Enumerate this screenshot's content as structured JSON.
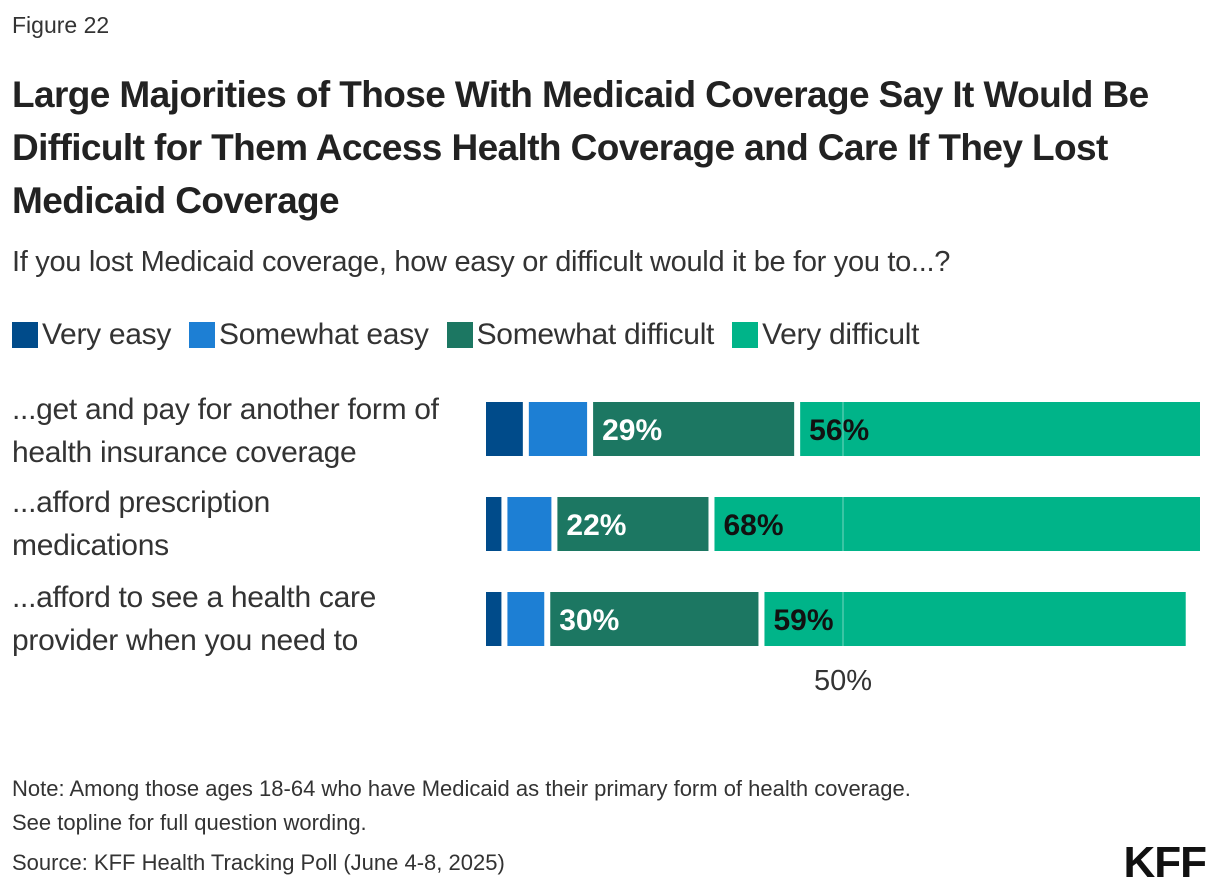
{
  "figure_label": "Figure 22",
  "chart_data": {
    "type": "bar",
    "orientation": "horizontal",
    "stacked": true,
    "title": "Large Majorities of Those With Medicaid Coverage Say It Would Be Difficult for Them Access Health Coverage and Care If They Lost Medicaid Coverage",
    "subtitle": "If you lost Medicaid coverage, how easy or difficult would it be for you to...?",
    "categories": [
      "...get and pay for another form of health insurance coverage",
      "...afford prescription medications",
      "...afford to see a health care provider when you need to"
    ],
    "series": [
      {
        "name": "Very easy",
        "color": "#004b8a",
        "values": [
          6,
          3,
          3
        ],
        "labeled": false
      },
      {
        "name": "Somewhat easy",
        "color": "#1d7fd4",
        "values": [
          9,
          7,
          6
        ],
        "labeled": false
      },
      {
        "name": "Somewhat difficult",
        "color": "#1c7762",
        "values": [
          29,
          22,
          30
        ],
        "labeled": true,
        "label_color": "#ffffff"
      },
      {
        "name": "Very difficult",
        "color": "#00b489",
        "values": [
          56,
          68,
          59
        ],
        "labeled": true,
        "label_color": "#111111"
      }
    ],
    "data_labels": [
      [
        "29%",
        "56%"
      ],
      [
        "22%",
        "68%"
      ],
      [
        "30%",
        "59%"
      ]
    ],
    "reference_line": {
      "value": 50,
      "label": "50%"
    },
    "xlim": [
      0,
      100
    ],
    "legend": "top"
  },
  "notes": {
    "note1": "Note: Among those ages 18-64 who have Medicaid as their primary form of health coverage.",
    "note2": "See topline for full question wording.",
    "source": "Source: KFF Health Tracking Poll (June 4-8, 2025)"
  },
  "logo": "KFF"
}
